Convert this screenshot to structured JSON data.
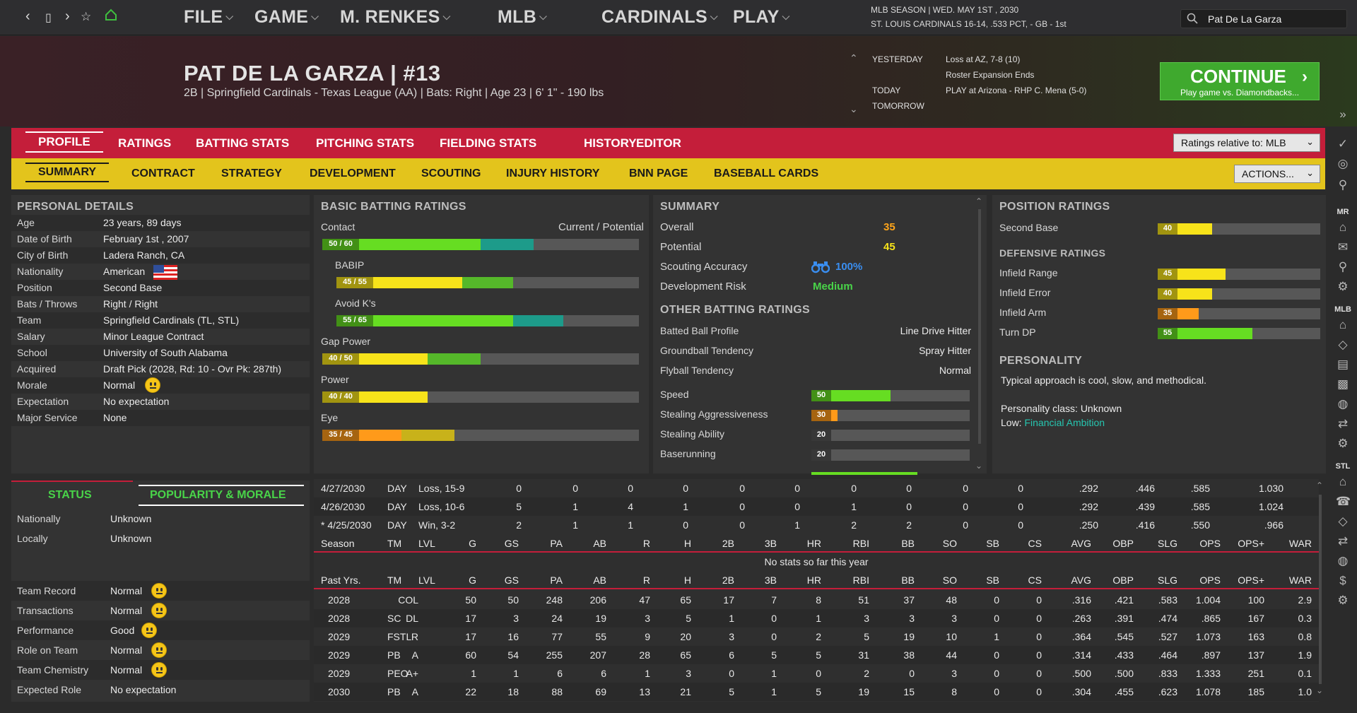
{
  "topbar": {
    "menus": [
      {
        "label": "FILE"
      },
      {
        "label": "GAME"
      },
      {
        "label": "M. RENKES"
      },
      {
        "label": "MLB"
      },
      {
        "label": "CARDINALS"
      },
      {
        "label": "PLAY"
      }
    ],
    "season_line1": "MLB SEASON  |  WED. MAY 1ST , 2030",
    "season_line2": "ST. LOUIS CARDINALS  16-14, .533 PCT, - GB - 1st",
    "search_value": "Pat De La Garza"
  },
  "header": {
    "player_name": "PAT DE LA GARZA  |  #13",
    "player_info": "2B | Springfield Cardinals - Texas League (AA)  |  Bats: Right  |  Age 23  |  6' 1\" - 190 lbs",
    "events": {
      "yesterday_label": "YESTERDAY",
      "yesterday_1": "Loss at AZ, 7-8 (10)",
      "yesterday_2": "Roster Expansion Ends",
      "today_label": "TODAY",
      "today_1": "PLAY at Arizona - RHP C. Mena (5-0)",
      "tomorrow_label": "TOMORROW"
    },
    "continue_label": "CONTINUE",
    "continue_sub": "Play game vs. Diamondbacks..."
  },
  "tabs1": [
    "PROFILE",
    "RATINGS",
    "BATTING STATS",
    "PITCHING STATS",
    "FIELDING STATS",
    "HISTORY",
    "EDITOR"
  ],
  "tabs2": [
    "SUMMARY",
    "CONTRACT",
    "STRATEGY",
    "DEVELOPMENT",
    "SCOUTING",
    "INJURY HISTORY",
    "BNN PAGE",
    "BASEBALL CARDS"
  ],
  "ratings_dropdown": "Ratings relative to: MLB",
  "actions_dropdown": "ACTIONS...",
  "personal": {
    "title": "PERSONAL DETAILS",
    "rows": [
      {
        "label": "Age",
        "value": "23 years, 89 days"
      },
      {
        "label": "Date of Birth",
        "value": "February 1st , 2007"
      },
      {
        "label": "City of Birth",
        "value": "Ladera Ranch, CA"
      },
      {
        "label": "Nationality",
        "value": "American"
      },
      {
        "label": "Position",
        "value": "Second Base"
      },
      {
        "label": "Bats / Throws",
        "value": "Right / Right"
      },
      {
        "label": "Team",
        "value": "Springfield Cardinals (TL, STL)"
      },
      {
        "label": "Salary",
        "value": "Minor League Contract"
      },
      {
        "label": "School",
        "value": "University of South Alabama"
      },
      {
        "label": "Acquired",
        "value": "Draft Pick (2028, Rd: 10 - Ovr Pk: 287th)"
      },
      {
        "label": "Morale",
        "value": "Normal"
      },
      {
        "label": "Expectation",
        "value": "No expectation"
      },
      {
        "label": "Major Service",
        "value": "None"
      }
    ]
  },
  "status": {
    "tab_status": "STATUS",
    "tab_popularity": "POPULARITY & MORALE",
    "rows1": [
      {
        "label": "Nationally",
        "value": "Unknown"
      },
      {
        "label": "Locally",
        "value": "Unknown"
      }
    ],
    "rows2": [
      {
        "label": "Team Record",
        "value": "Normal"
      },
      {
        "label": "Transactions",
        "value": "Normal"
      },
      {
        "label": "Performance",
        "value": "Good"
      },
      {
        "label": "Role on Team",
        "value": "Normal"
      },
      {
        "label": "Team Chemistry",
        "value": "Normal"
      },
      {
        "label": "Expected Role",
        "value": "No expectation"
      }
    ]
  },
  "batting": {
    "title": "BASIC BATTING RATINGS",
    "cur_pot_label": "Current / Potential",
    "items": [
      {
        "label": "Contact",
        "badge": "50 / 60",
        "current": 50,
        "potential": 60,
        "color": "#66dd22",
        "pcolor": "#1d9b8a"
      },
      {
        "label": "BABIP",
        "badge": "45 / 55",
        "current": 45,
        "potential": 55,
        "color": "#f7e31a",
        "pcolor": "#55b82a"
      },
      {
        "label": "Avoid K's",
        "badge": "55 / 65",
        "current": 55,
        "potential": 65,
        "color": "#66dd22",
        "pcolor": "#1d9b8a"
      },
      {
        "label": "Gap Power",
        "badge": "40 / 50",
        "current": 40,
        "potential": 50,
        "color": "#f7e31a",
        "pcolor": "#55b82a"
      },
      {
        "label": "Power",
        "badge": "40 / 40",
        "current": 40,
        "potential": 40,
        "color": "#f7e31a",
        "pcolor": "#f7e31a"
      },
      {
        "label": "Eye",
        "badge": "35 / 45",
        "current": 35,
        "potential": 45,
        "color": "#ff9a1a",
        "pcolor": "#c8b21a"
      }
    ]
  },
  "summary": {
    "title": "SUMMARY",
    "overall_label": "Overall",
    "overall": "35",
    "potential_label": "Potential",
    "potential": "45",
    "scouting_label": "Scouting Accuracy",
    "scouting": "100%",
    "risk_label": "Development Risk",
    "risk": "Medium",
    "other_title": "OTHER BATTING RATINGS",
    "other": [
      {
        "label": "Batted Ball Profile",
        "value": "Line Drive Hitter"
      },
      {
        "label": "Groundball Tendency",
        "value": "Spray Hitter"
      },
      {
        "label": "Flyball Tendency",
        "value": "Normal"
      }
    ],
    "run": [
      {
        "label": "Speed",
        "value": 50,
        "color": "#66dd22"
      },
      {
        "label": "Stealing Aggressiveness",
        "value": 30,
        "color": "#ff9a1a"
      },
      {
        "label": "Stealing Ability",
        "value": 20,
        "color": "#ff5a5a"
      },
      {
        "label": "Baserunning",
        "value": 20,
        "color": "#ff5a5a"
      }
    ]
  },
  "position": {
    "title": "POSITION RATINGS",
    "primary": [
      {
        "label": "Second Base",
        "value": 40,
        "color": "#f7e31a"
      }
    ],
    "def_title": "DEFENSIVE RATINGS",
    "defense": [
      {
        "label": "Infield Range",
        "value": 45,
        "color": "#f7e31a"
      },
      {
        "label": "Infield Error",
        "value": 40,
        "color": "#f7e31a"
      },
      {
        "label": "Infield Arm",
        "value": 35,
        "color": "#ff9a1a"
      },
      {
        "label": "Turn DP",
        "value": 55,
        "color": "#66dd22"
      }
    ],
    "personality_title": "PERSONALITY",
    "personality_text": "Typical approach is cool, slow, and methodical.",
    "personality_class": "Personality class: Unknown",
    "low_label": "Low:",
    "low_value": "Financial Ambition"
  },
  "stats": {
    "columns": [
      "Season",
      "TM",
      "LVL",
      "G",
      "GS",
      "PA",
      "AB",
      "R",
      "H",
      "2B",
      "3B",
      "HR",
      "RBI",
      "BB",
      "SO",
      "SB",
      "CS",
      "AVG",
      "OBP",
      "SLG",
      "OPS",
      "OPS+",
      "WAR"
    ],
    "past_columns": [
      "Past Yrs.",
      "TM",
      "LVL",
      "G",
      "GS",
      "PA",
      "AB",
      "R",
      "H",
      "2B",
      "3B",
      "HR",
      "RBI",
      "BB",
      "SO",
      "SB",
      "CS",
      "AVG",
      "OBP",
      "SLG",
      "OPS",
      "OPS+",
      "WAR"
    ],
    "game_rows": [
      [
        "4/27/2030",
        "DAY",
        "Loss, 15-9",
        "0",
        "0",
        "0",
        "0",
        "0",
        "0",
        "0",
        "0",
        "0",
        "0",
        ".292",
        ".446",
        ".585",
        "1.030"
      ],
      [
        "4/26/2030",
        "DAY",
        "Loss, 10-6",
        "5",
        "1",
        "4",
        "1",
        "0",
        "0",
        "1",
        "0",
        "0",
        "0",
        ".292",
        ".439",
        ".585",
        "1.024"
      ],
      [
        "* 4/25/2030",
        "DAY",
        "Win, 3-2",
        "2",
        "1",
        "1",
        "0",
        "0",
        "1",
        "2",
        "2",
        "0",
        "0",
        ".250",
        ".416",
        ".550",
        ".966"
      ]
    ],
    "no_stats": "No stats so far this year",
    "past_rows": [
      [
        "2028",
        "",
        "COL",
        "50",
        "50",
        "248",
        "206",
        "47",
        "65",
        "17",
        "7",
        "8",
        "51",
        "37",
        "48",
        "0",
        "0",
        ".316",
        ".421",
        ".583",
        "1.004",
        "100",
        "2.9"
      ],
      [
        "2028",
        "SC",
        "DL",
        "17",
        "3",
        "24",
        "19",
        "3",
        "5",
        "1",
        "0",
        "1",
        "3",
        "3",
        "3",
        "0",
        "0",
        ".263",
        ".391",
        ".474",
        ".865",
        "167",
        "0.3"
      ],
      [
        "2029",
        "FSTL",
        "R",
        "17",
        "16",
        "77",
        "55",
        "9",
        "20",
        "3",
        "0",
        "2",
        "5",
        "19",
        "10",
        "1",
        "0",
        ".364",
        ".545",
        ".527",
        "1.073",
        "163",
        "0.8"
      ],
      [
        "2029",
        "PB",
        "A",
        "60",
        "54",
        "255",
        "207",
        "28",
        "65",
        "6",
        "5",
        "5",
        "31",
        "38",
        "44",
        "0",
        "0",
        ".314",
        ".433",
        ".464",
        ".897",
        "137",
        "1.9"
      ],
      [
        "2029",
        "PEO",
        "A+",
        "1",
        "1",
        "6",
        "6",
        "1",
        "3",
        "0",
        "1",
        "0",
        "2",
        "0",
        "3",
        "0",
        "0",
        ".500",
        ".500",
        ".833",
        "1.333",
        "251",
        "0.1"
      ],
      [
        "2030",
        "PB",
        "A",
        "22",
        "18",
        "88",
        "69",
        "13",
        "21",
        "5",
        "1",
        "5",
        "19",
        "15",
        "8",
        "0",
        "0",
        ".304",
        ".455",
        ".623",
        "1.078",
        "185",
        "1.0"
      ]
    ]
  },
  "sidebar_labels": [
    "MR",
    "MLB",
    "STL"
  ],
  "colors": {
    "accent_red": "#c41e3a",
    "accent_yellow": "#e3c41c",
    "continue_green": "#3fa92e",
    "teal": "#26c6b0"
  }
}
